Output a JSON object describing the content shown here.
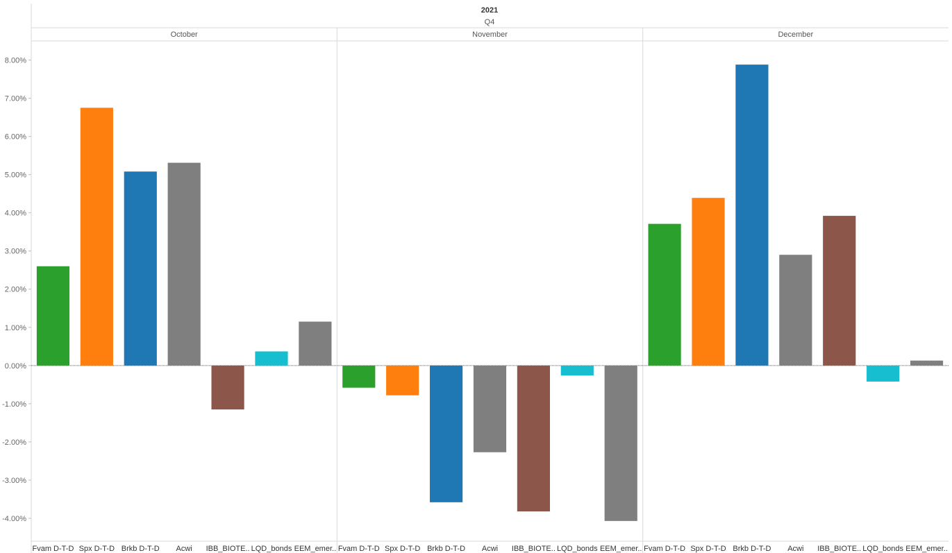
{
  "chart_data": {
    "type": "bar",
    "header": {
      "year": "2021",
      "quarter": "Q4"
    },
    "categories": [
      "Fvam D-T-D",
      "Spx D-T-D",
      "Brkb D-T-D",
      "Acwi",
      "IBB_BIOTE..",
      "LQD_bonds",
      "EEM_emer.."
    ],
    "colors": [
      "#2ca02c",
      "#ff7f0e",
      "#1f77b4",
      "#7f7f7f",
      "#8c564b",
      "#17becf",
      "#7f7f7f"
    ],
    "panels": [
      {
        "name": "October",
        "values": [
          2.6,
          6.75,
          5.08,
          5.31,
          -1.15,
          0.37,
          1.15
        ]
      },
      {
        "name": "November",
        "values": [
          -0.58,
          -0.78,
          -3.58,
          -2.27,
          -3.82,
          -0.26,
          -4.07
        ]
      },
      {
        "name": "December",
        "values": [
          3.71,
          4.39,
          7.88,
          2.9,
          3.92,
          -0.42,
          0.13
        ]
      }
    ],
    "ylim": [
      -4.6,
      8.5
    ],
    "yticks": [
      8,
      7,
      6,
      5,
      4,
      3,
      2,
      1,
      0,
      -1,
      -2,
      -3,
      -4
    ],
    "ytick_labels": [
      "8.00%",
      "7.00%",
      "6.00%",
      "5.00%",
      "4.00%",
      "3.00%",
      "2.00%",
      "1.00%",
      "0.00%",
      "-1.00%",
      "-2.00%",
      "-3.00%",
      "-4.00%"
    ],
    "grid": false,
    "legend": "none"
  }
}
